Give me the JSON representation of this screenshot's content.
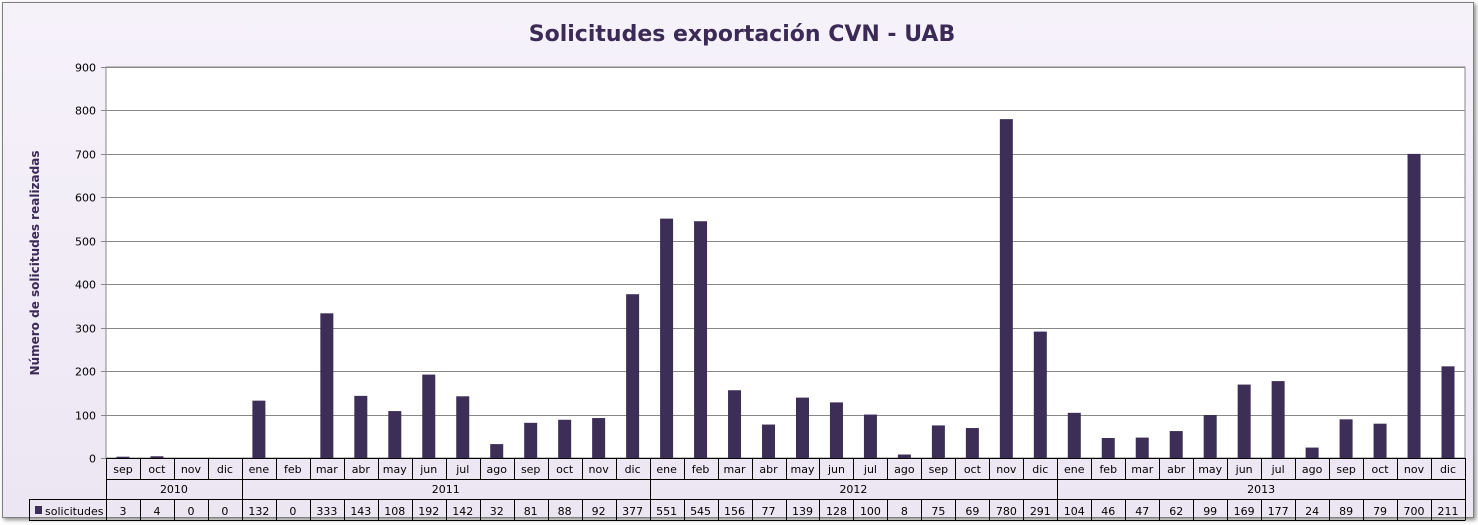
{
  "chart_data": {
    "type": "bar",
    "title": "Solicitudes exportación CVN - UAB",
    "xlabel": "",
    "ylabel": "Número de solicitudes realizadas",
    "ylim": [
      0,
      900
    ],
    "yticks": [
      "0",
      "100",
      "200",
      "300",
      "400",
      "500",
      "600",
      "700",
      "800",
      "900"
    ],
    "grid": true,
    "groups": [
      {
        "label": "2010",
        "months": [
          "sep",
          "oct",
          "nov",
          "dic"
        ]
      },
      {
        "label": "2011",
        "months": [
          "ene",
          "feb",
          "mar",
          "abr",
          "may",
          "jun",
          "jul",
          "ago",
          "sep",
          "oct",
          "nov",
          "dic"
        ]
      },
      {
        "label": "2012",
        "months": [
          "ene",
          "feb",
          "mar",
          "abr",
          "may",
          "jun",
          "jul",
          "ago",
          "sep",
          "oct",
          "nov",
          "dic"
        ]
      },
      {
        "label": "2013",
        "months": [
          "ene",
          "feb",
          "mar",
          "abr",
          "may",
          "jun",
          "jul",
          "ago",
          "sep",
          "oct",
          "nov",
          "dic"
        ]
      }
    ],
    "series": [
      {
        "name": "solicitudes",
        "color": "#3d2e57",
        "values": [
          3,
          4,
          0,
          0,
          132,
          0,
          333,
          143,
          108,
          192,
          142,
          32,
          81,
          88,
          92,
          377,
          551,
          545,
          156,
          77,
          139,
          128,
          100,
          8,
          75,
          69,
          780,
          291,
          104,
          46,
          47,
          62,
          99,
          169,
          177,
          24,
          89,
          79,
          700,
          211
        ]
      }
    ]
  }
}
